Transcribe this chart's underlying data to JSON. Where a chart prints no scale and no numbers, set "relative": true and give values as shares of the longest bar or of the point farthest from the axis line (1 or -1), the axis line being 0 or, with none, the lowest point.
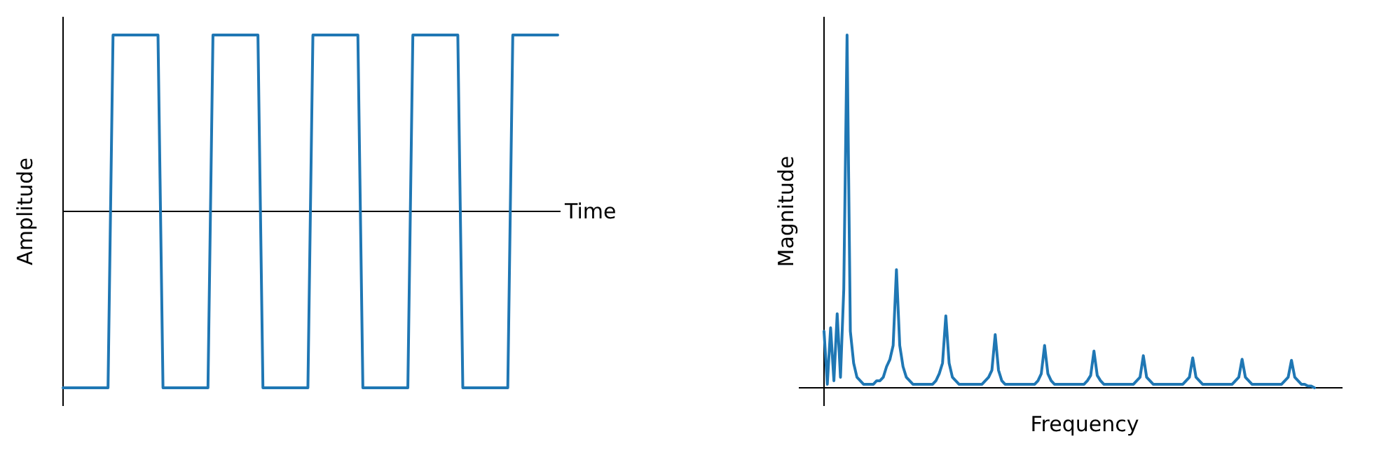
{
  "chart_data": [
    {
      "type": "line",
      "relative": true,
      "xlabel": "Time",
      "ylabel": "Amplitude",
      "categories": [
        null,
        null,
        null,
        null,
        null,
        null,
        null,
        null,
        null,
        null,
        null,
        null,
        null,
        null,
        null,
        null,
        null,
        null,
        null,
        null,
        null,
        null,
        null,
        null,
        null,
        null,
        null,
        null,
        null,
        null,
        null,
        null,
        null,
        null,
        null,
        null,
        null,
        null,
        null,
        null,
        null,
        null,
        null,
        null,
        null,
        null,
        null,
        null,
        null,
        null,
        null,
        null,
        null,
        null,
        null,
        null,
        null,
        null,
        null,
        null,
        null,
        null,
        null,
        null,
        null,
        null,
        null,
        null,
        null,
        null,
        null,
        null,
        null,
        null,
        null,
        null,
        null,
        null,
        null,
        null,
        null,
        null,
        null,
        null,
        null,
        null,
        null,
        null,
        null,
        null,
        null,
        null,
        null,
        null,
        null,
        null,
        null,
        null,
        null,
        null
      ],
      "series": [
        {
          "color": "#1f77b4",
          "values": [
            -1,
            -1,
            -1,
            -1,
            -1,
            -1,
            -1,
            -1,
            -1,
            -1,
            1,
            1,
            1,
            1,
            1,
            1,
            1,
            1,
            1,
            1,
            -1,
            -1,
            -1,
            -1,
            -1,
            -1,
            -1,
            -1,
            -1,
            -1,
            1,
            1,
            1,
            1,
            1,
            1,
            1,
            1,
            1,
            1,
            -1,
            -1,
            -1,
            -1,
            -1,
            -1,
            -1,
            -1,
            -1,
            -1,
            1,
            1,
            1,
            1,
            1,
            1,
            1,
            1,
            1,
            1,
            -1,
            -1,
            -1,
            -1,
            -1,
            -1,
            -1,
            -1,
            -1,
            -1,
            1,
            1,
            1,
            1,
            1,
            1,
            1,
            1,
            1,
            1,
            -1,
            -1,
            -1,
            -1,
            -1,
            -1,
            -1,
            -1,
            -1,
            -1,
            1,
            1,
            1,
            1,
            1,
            1,
            1,
            1,
            1,
            1
          ]
        }
      ]
    },
    {
      "type": "line",
      "relative": true,
      "xlabel": "Frequency",
      "ylabel": "Magnitude",
      "categories": [
        null,
        null,
        null,
        null,
        null,
        null,
        null,
        null,
        null,
        null,
        null,
        null,
        null,
        null,
        null,
        null,
        null,
        null,
        null,
        null,
        null,
        null,
        null,
        null,
        null,
        null,
        null,
        null,
        null,
        null,
        null,
        null,
        null,
        null,
        null,
        null,
        null,
        null,
        null,
        null,
        null,
        null,
        null,
        null,
        null,
        null,
        null,
        null,
        null,
        null,
        null,
        null,
        null,
        null,
        null,
        null,
        null,
        null,
        null,
        null,
        null,
        null,
        null,
        null,
        null,
        null,
        null,
        null,
        null,
        null,
        null,
        null,
        null,
        null,
        null,
        null,
        null,
        null,
        null,
        null,
        null,
        null,
        null,
        null,
        null,
        null,
        null,
        null,
        null,
        null,
        null,
        null,
        null,
        null,
        null,
        null,
        null,
        null,
        null,
        null,
        null,
        null,
        null,
        null,
        null,
        null,
        null,
        null,
        null,
        null,
        null,
        null,
        null,
        null,
        null,
        null,
        null,
        null,
        null,
        null,
        null,
        null,
        null,
        null,
        null,
        null,
        null,
        null,
        null,
        null,
        null,
        null,
        null,
        null,
        null,
        null,
        null,
        null,
        null,
        null,
        null,
        null,
        null,
        null,
        null,
        null,
        null,
        null,
        null,
        null
      ],
      "series": [
        {
          "color": "#1f77b4",
          "values": [
            0.16,
            0.01,
            0.17,
            0.02,
            0.21,
            0.03,
            0.28,
            1.0,
            0.16,
            0.07,
            0.03,
            0.02,
            0.01,
            0.01,
            0.01,
            0.01,
            0.02,
            0.02,
            0.03,
            0.06,
            0.08,
            0.12,
            0.335,
            0.12,
            0.06,
            0.03,
            0.02,
            0.01,
            0.01,
            0.01,
            0.01,
            0.01,
            0.01,
            0.01,
            0.02,
            0.04,
            0.07,
            0.204,
            0.07,
            0.03,
            0.02,
            0.01,
            0.01,
            0.01,
            0.01,
            0.01,
            0.01,
            0.01,
            0.01,
            0.02,
            0.03,
            0.05,
            0.151,
            0.05,
            0.02,
            0.01,
            0.01,
            0.01,
            0.01,
            0.01,
            0.01,
            0.01,
            0.01,
            0.01,
            0.01,
            0.02,
            0.04,
            0.12,
            0.04,
            0.02,
            0.01,
            0.01,
            0.01,
            0.01,
            0.01,
            0.01,
            0.01,
            0.01,
            0.01,
            0.01,
            0.02,
            0.035,
            0.104,
            0.035,
            0.02,
            0.01,
            0.01,
            0.01,
            0.01,
            0.01,
            0.01,
            0.01,
            0.01,
            0.01,
            0.01,
            0.02,
            0.03,
            0.091,
            0.03,
            0.02,
            0.01,
            0.01,
            0.01,
            0.01,
            0.01,
            0.01,
            0.01,
            0.01,
            0.01,
            0.01,
            0.02,
            0.03,
            0.085,
            0.03,
            0.02,
            0.01,
            0.01,
            0.01,
            0.01,
            0.01,
            0.01,
            0.01,
            0.01,
            0.01,
            0.01,
            0.02,
            0.03,
            0.081,
            0.03,
            0.02,
            0.01,
            0.01,
            0.01,
            0.01,
            0.01,
            0.01,
            0.01,
            0.01,
            0.01,
            0.01,
            0.02,
            0.03,
            0.078,
            0.03,
            0.02,
            0.01,
            0.01,
            0.005,
            0.005,
            0
          ]
        }
      ]
    }
  ]
}
